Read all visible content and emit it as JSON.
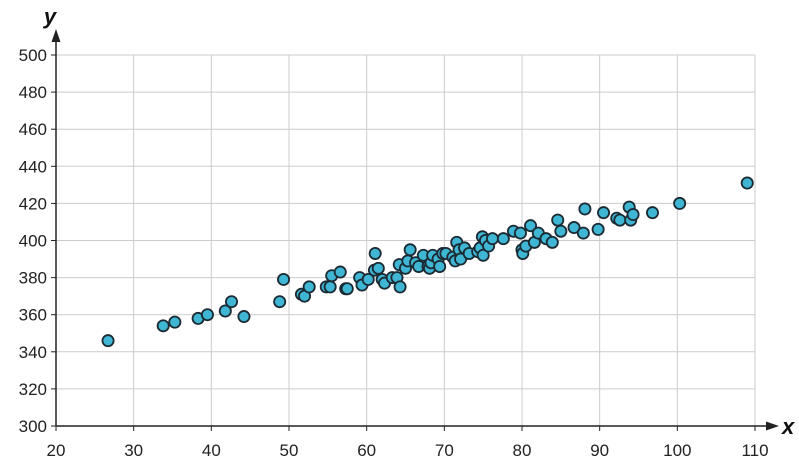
{
  "chart_data": {
    "type": "scatter",
    "title": "",
    "xlabel": "x",
    "ylabel": "y",
    "xlim": [
      20,
      110
    ],
    "ylim": [
      300,
      500
    ],
    "x_ticks": [
      20,
      30,
      40,
      50,
      60,
      70,
      80,
      90,
      100,
      110
    ],
    "y_ticks": [
      300,
      320,
      340,
      360,
      380,
      400,
      420,
      440,
      460,
      480,
      500
    ],
    "x_tick_labels": [
      "20",
      "30",
      "40",
      "50",
      "60",
      "70",
      "80",
      "90",
      "100",
      "110"
    ],
    "y_tick_labels": [
      "300",
      "320",
      "340",
      "360",
      "380",
      "400",
      "420",
      "440",
      "460",
      "480",
      "500"
    ],
    "grid": true,
    "colors": {
      "marker_fill": "#3fb6d3",
      "marker_stroke": "#1b2a33",
      "grid": "#cccccc",
      "axis": "#222222"
    },
    "points": [
      [
        26.7,
        346
      ],
      [
        33.8,
        354
      ],
      [
        35.3,
        356
      ],
      [
        38.3,
        358
      ],
      [
        39.5,
        360
      ],
      [
        41.8,
        362
      ],
      [
        42.6,
        367
      ],
      [
        44.2,
        359
      ],
      [
        48.8,
        367
      ],
      [
        49.3,
        379
      ],
      [
        51.6,
        371
      ],
      [
        52.0,
        370
      ],
      [
        52.6,
        375
      ],
      [
        54.8,
        375
      ],
      [
        55.3,
        375
      ],
      [
        55.5,
        381
      ],
      [
        56.6,
        383
      ],
      [
        57.3,
        374
      ],
      [
        57.5,
        374
      ],
      [
        59.1,
        380
      ],
      [
        59.4,
        376
      ],
      [
        60.2,
        379
      ],
      [
        61.0,
        384
      ],
      [
        61.1,
        393
      ],
      [
        61.5,
        385
      ],
      [
        62.0,
        379
      ],
      [
        62.3,
        377
      ],
      [
        63.3,
        380
      ],
      [
        63.9,
        380
      ],
      [
        64.2,
        387
      ],
      [
        64.3,
        375
      ],
      [
        65.0,
        385
      ],
      [
        65.3,
        389
      ],
      [
        65.6,
        395
      ],
      [
        66.3,
        388
      ],
      [
        66.7,
        386
      ],
      [
        67.3,
        392
      ],
      [
        67.9,
        386
      ],
      [
        68.1,
        385
      ],
      [
        68.3,
        388
      ],
      [
        68.5,
        392
      ],
      [
        69.2,
        390
      ],
      [
        69.4,
        386
      ],
      [
        69.8,
        393
      ],
      [
        70.2,
        393
      ],
      [
        71.1,
        391
      ],
      [
        71.4,
        389
      ],
      [
        71.6,
        399
      ],
      [
        71.9,
        395
      ],
      [
        72.1,
        390
      ],
      [
        72.6,
        396
      ],
      [
        73.2,
        393
      ],
      [
        74.3,
        394
      ],
      [
        74.6,
        396
      ],
      [
        74.9,
        402
      ],
      [
        75.0,
        392
      ],
      [
        75.3,
        400
      ],
      [
        75.7,
        397
      ],
      [
        76.2,
        401
      ],
      [
        77.6,
        401
      ],
      [
        78.9,
        405
      ],
      [
        79.8,
        404
      ],
      [
        80.0,
        395
      ],
      [
        80.1,
        393
      ],
      [
        80.5,
        397
      ],
      [
        81.1,
        408
      ],
      [
        81.6,
        399
      ],
      [
        82.1,
        404
      ],
      [
        83.1,
        401
      ],
      [
        83.9,
        399
      ],
      [
        84.6,
        411
      ],
      [
        85.0,
        405
      ],
      [
        86.7,
        407
      ],
      [
        87.9,
        404
      ],
      [
        88.1,
        417
      ],
      [
        89.8,
        406
      ],
      [
        90.5,
        415
      ],
      [
        92.2,
        412
      ],
      [
        92.6,
        411
      ],
      [
        93.8,
        418
      ],
      [
        94.0,
        411
      ],
      [
        94.3,
        414
      ],
      [
        96.8,
        415
      ],
      [
        100.3,
        420
      ],
      [
        109.0,
        431
      ]
    ]
  }
}
